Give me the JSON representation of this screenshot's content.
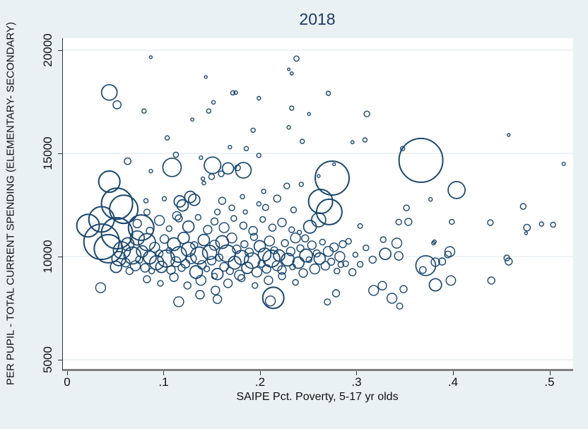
{
  "figure": {
    "background": "#eaf1f2",
    "plot_background": "#ffffff"
  },
  "colors": {
    "marker": "#1a476f",
    "title": "#1f3864",
    "gridline": "#dde7ec",
    "axis_line": "#303030",
    "bottom_axis_line": "#7f7f7f",
    "tick_text": "#111111"
  },
  "chart_data": {
    "type": "scatter",
    "subtype": "bubble-hollow",
    "title": "2018",
    "xlabel": "SAIPE Pct. Poverty, 5-17 yr olds",
    "ylabel": "PER PUPIL - TOTAL CURRENT SPENDING (ELEMENTARY- SECONDARY)",
    "xlim": [
      -0.0051,
      0.5238
    ],
    "ylim": [
      4555,
      20580
    ],
    "xtick_values": [
      0,
      0.1,
      0.2,
      0.3,
      0.4,
      0.5
    ],
    "xtick_labels": [
      "0",
      ".1",
      ".2",
      ".3",
      ".4",
      ".5"
    ],
    "ytick_values": [
      5000,
      10000,
      15000,
      20000
    ],
    "ytick_labels": [
      "5000",
      "10000",
      "15000",
      "20000"
    ],
    "grid": true,
    "legend": "none",
    "marker": "hollow-circle",
    "marker_color": "#1a476f",
    "point_format": "[poverty_rate, dollars_per_pupil, marker_radius_px]",
    "points": [
      [
        0.086,
        19660,
        2
      ],
      [
        0.237,
        19590,
        3.7
      ],
      [
        0.229,
        19070,
        1.8
      ],
      [
        0.232,
        18870,
        2.2
      ],
      [
        0.143,
        18700,
        2
      ],
      [
        0.043,
        17950,
        11
      ],
      [
        0.051,
        17350,
        5.7
      ],
      [
        0.079,
        17050,
        3
      ],
      [
        0.151,
        17470,
        2.5
      ],
      [
        0.146,
        17050,
        3
      ],
      [
        0.129,
        16640,
        2.2
      ],
      [
        0.174,
        17940,
        2.5
      ],
      [
        0.171,
        17930,
        3
      ],
      [
        0.198,
        17670,
        2.5
      ],
      [
        0.27,
        17910,
        3
      ],
      [
        0.232,
        17190,
        3
      ],
      [
        0.25,
        16910,
        2
      ],
      [
        0.31,
        16910,
        4
      ],
      [
        0.192,
        16120,
        3
      ],
      [
        0.229,
        16260,
        2.5
      ],
      [
        0.103,
        15750,
        3
      ],
      [
        0.168,
        15300,
        2.5
      ],
      [
        0.243,
        15580,
        3
      ],
      [
        0.295,
        15540,
        2.2
      ],
      [
        0.308,
        15650,
        3
      ],
      [
        0.185,
        15230,
        3
      ],
      [
        0.347,
        15230,
        3
      ],
      [
        0.457,
        15890,
        2
      ],
      [
        0.514,
        14490,
        2.3
      ],
      [
        0.366,
        14660,
        31
      ],
      [
        0.274,
        13800,
        24
      ],
      [
        0.276,
        14470,
        2
      ],
      [
        0.26,
        13900,
        2
      ],
      [
        0.108,
        14320,
        13
      ],
      [
        0.112,
        14930,
        3.7
      ],
      [
        0.138,
        14790,
        2.5
      ],
      [
        0.15,
        14420,
        11.7
      ],
      [
        0.062,
        14620,
        4.7
      ],
      [
        0.086,
        14140,
        2.5
      ],
      [
        0.043,
        13630,
        15
      ],
      [
        0.14,
        13770,
        2.5
      ],
      [
        0.141,
        13560,
        2.5
      ],
      [
        0.149,
        13870,
        4
      ],
      [
        0.159,
        14010,
        4
      ],
      [
        0.166,
        14270,
        8
      ],
      [
        0.182,
        14180,
        11
      ],
      [
        0.176,
        14300,
        4
      ],
      [
        0.198,
        14900,
        3
      ],
      [
        0.403,
        13220,
        12
      ],
      [
        0.242,
        13500,
        3
      ],
      [
        0.227,
        13420,
        4
      ],
      [
        0.051,
        12560,
        22
      ],
      [
        0.058,
        12290,
        20
      ],
      [
        0.035,
        11800,
        18
      ],
      [
        0.1,
        12800,
        3
      ],
      [
        0.116,
        12670,
        8
      ],
      [
        0.119,
        12480,
        8
      ],
      [
        0.127,
        12890,
        8
      ],
      [
        0.131,
        12750,
        8
      ],
      [
        0.113,
        11970,
        6
      ],
      [
        0.081,
        12700,
        3
      ],
      [
        0.082,
        12150,
        4.3
      ],
      [
        0.262,
        12670,
        17
      ],
      [
        0.271,
        12160,
        18
      ],
      [
        0.217,
        12810,
        5
      ],
      [
        0.234,
        12260,
        4
      ],
      [
        0.205,
        12380,
        4.3
      ],
      [
        0.203,
        13160,
        3
      ],
      [
        0.198,
        12550,
        3
      ],
      [
        0.181,
        12900,
        3
      ],
      [
        0.184,
        12160,
        3
      ],
      [
        0.16,
        12700,
        5
      ],
      [
        0.155,
        12160,
        4
      ],
      [
        0.17,
        12360,
        4
      ],
      [
        0.351,
        12360,
        4
      ],
      [
        0.376,
        12770,
        2.5
      ],
      [
        0.472,
        12430,
        4
      ],
      [
        0.021,
        11500,
        16
      ],
      [
        0.051,
        11130,
        22
      ],
      [
        0.076,
        11400,
        18
      ],
      [
        0.343,
        11670,
        4
      ],
      [
        0.353,
        11680,
        5
      ],
      [
        0.398,
        11680,
        3.5
      ],
      [
        0.438,
        11645,
        4
      ],
      [
        0.491,
        11575,
        3
      ],
      [
        0.503,
        11540,
        3.5
      ],
      [
        0.476,
        11400,
        4.7
      ],
      [
        0.475,
        11130,
        2
      ],
      [
        0.303,
        11480,
        3.3
      ],
      [
        0.26,
        11780,
        10
      ],
      [
        0.251,
        11440,
        9
      ],
      [
        0.035,
        10720,
        25
      ],
      [
        0.042,
        10380,
        20
      ],
      [
        0.327,
        10820,
        4
      ],
      [
        0.341,
        10650,
        7
      ],
      [
        0.329,
        10130,
        8
      ],
      [
        0.343,
        10030,
        6
      ],
      [
        0.316,
        9850,
        5
      ],
      [
        0.309,
        10420,
        4
      ],
      [
        0.298,
        10090,
        3.5
      ],
      [
        0.379,
        10650,
        2.5
      ],
      [
        0.396,
        10240,
        7
      ],
      [
        0.38,
        10720,
        2.5
      ],
      [
        0.246,
        10880,
        5
      ],
      [
        0.24,
        11170,
        3
      ],
      [
        0.371,
        9560,
        14
      ],
      [
        0.368,
        9350,
        4.7
      ],
      [
        0.381,
        9730,
        6
      ],
      [
        0.388,
        9760,
        5
      ],
      [
        0.394,
        10100,
        4.7
      ],
      [
        0.457,
        9760,
        5
      ],
      [
        0.455,
        9930,
        4
      ],
      [
        0.303,
        9620,
        4
      ],
      [
        0.295,
        9240,
        5
      ],
      [
        0.283,
        9610,
        4
      ],
      [
        0.291,
        10740,
        4
      ],
      [
        0.381,
        8630,
        8.7
      ],
      [
        0.397,
        8840,
        6.7
      ],
      [
        0.439,
        8840,
        5
      ],
      [
        0.034,
        8490,
        7
      ],
      [
        0.115,
        7810,
        7
      ],
      [
        0.137,
        8150,
        6
      ],
      [
        0.153,
        8360,
        6
      ],
      [
        0.155,
        7930,
        6
      ],
      [
        0.213,
        8000,
        15
      ],
      [
        0.21,
        7850,
        7
      ],
      [
        0.269,
        7800,
        4.3
      ],
      [
        0.278,
        8220,
        5
      ],
      [
        0.317,
        8360,
        7
      ],
      [
        0.326,
        8590,
        6
      ],
      [
        0.336,
        7980,
        7
      ],
      [
        0.344,
        7600,
        4.3
      ],
      [
        0.348,
        8420,
        5
      ],
      [
        0.05,
        9500,
        8
      ],
      [
        0.053,
        9900,
        10
      ],
      [
        0.056,
        10300,
        12
      ],
      [
        0.06,
        9700,
        6
      ],
      [
        0.062,
        10600,
        9
      ],
      [
        0.064,
        9300,
        5
      ],
      [
        0.067,
        10050,
        12
      ],
      [
        0.07,
        9550,
        7
      ],
      [
        0.072,
        10900,
        10
      ],
      [
        0.074,
        9850,
        5
      ],
      [
        0.077,
        10250,
        8
      ],
      [
        0.08,
        9450,
        6
      ],
      [
        0.082,
        10700,
        12
      ],
      [
        0.085,
        9950,
        9
      ],
      [
        0.087,
        9300,
        4
      ],
      [
        0.09,
        10450,
        7
      ],
      [
        0.092,
        9700,
        10
      ],
      [
        0.095,
        10150,
        5
      ],
      [
        0.097,
        9500,
        8
      ],
      [
        0.1,
        10850,
        6
      ],
      [
        0.102,
        9900,
        12
      ],
      [
        0.105,
        10300,
        4
      ],
      [
        0.107,
        9350,
        6
      ],
      [
        0.11,
        10600,
        9
      ],
      [
        0.112,
        9750,
        7
      ],
      [
        0.115,
        10100,
        11
      ],
      [
        0.118,
        9450,
        5
      ],
      [
        0.12,
        10900,
        8
      ],
      [
        0.122,
        9650,
        6
      ],
      [
        0.125,
        10350,
        10
      ],
      [
        0.128,
        9900,
        7
      ],
      [
        0.131,
        10550,
        5
      ],
      [
        0.133,
        9250,
        9
      ],
      [
        0.136,
        10050,
        12
      ],
      [
        0.139,
        9600,
        6
      ],
      [
        0.141,
        10800,
        8
      ],
      [
        0.144,
        9400,
        4
      ],
      [
        0.147,
        10200,
        10
      ],
      [
        0.149,
        9800,
        6
      ],
      [
        0.152,
        10550,
        7
      ],
      [
        0.155,
        9150,
        8
      ],
      [
        0.157,
        9950,
        5
      ],
      [
        0.16,
        10700,
        9
      ],
      [
        0.162,
        9500,
        6
      ],
      [
        0.165,
        10150,
        12
      ],
      [
        0.168,
        9300,
        5
      ],
      [
        0.17,
        10900,
        7
      ],
      [
        0.173,
        9700,
        9
      ],
      [
        0.175,
        10350,
        6
      ],
      [
        0.178,
        9100,
        7
      ],
      [
        0.18,
        9950,
        10
      ],
      [
        0.183,
        10600,
        5
      ],
      [
        0.186,
        9450,
        8
      ],
      [
        0.188,
        10200,
        6
      ],
      [
        0.191,
        9800,
        11
      ],
      [
        0.193,
        10950,
        5
      ],
      [
        0.196,
        9250,
        7
      ],
      [
        0.199,
        10500,
        8
      ],
      [
        0.201,
        9650,
        5
      ],
      [
        0.204,
        10100,
        9
      ],
      [
        0.206,
        9400,
        6
      ],
      [
        0.209,
        10750,
        7
      ],
      [
        0.211,
        9900,
        12
      ],
      [
        0.214,
        10300,
        5
      ],
      [
        0.217,
        9550,
        7
      ],
      [
        0.219,
        10050,
        8
      ],
      [
        0.222,
        9350,
        6
      ],
      [
        0.225,
        10650,
        5
      ],
      [
        0.228,
        9850,
        9
      ],
      [
        0.231,
        10250,
        6
      ],
      [
        0.233,
        9500,
        4
      ],
      [
        0.236,
        10900,
        7
      ],
      [
        0.239,
        9700,
        8
      ],
      [
        0.241,
        10400,
        5
      ],
      [
        0.244,
        9200,
        6
      ],
      [
        0.247,
        10050,
        9
      ],
      [
        0.25,
        9850,
        4
      ],
      [
        0.253,
        10550,
        6
      ],
      [
        0.256,
        9400,
        7
      ],
      [
        0.258,
        10150,
        5
      ],
      [
        0.261,
        9900,
        8
      ],
      [
        0.264,
        10700,
        4
      ],
      [
        0.267,
        9550,
        6
      ],
      [
        0.27,
        10250,
        7
      ],
      [
        0.273,
        9750,
        5
      ],
      [
        0.276,
        10450,
        6
      ],
      [
        0.279,
        9300,
        4
      ],
      [
        0.282,
        10000,
        7
      ],
      [
        0.285,
        10600,
        5
      ],
      [
        0.288,
        9650,
        4
      ],
      [
        0.072,
        11600,
        6
      ],
      [
        0.085,
        11250,
        5
      ],
      [
        0.095,
        11750,
        7
      ],
      [
        0.105,
        11350,
        4
      ],
      [
        0.115,
        11850,
        5
      ],
      [
        0.125,
        11450,
        8
      ],
      [
        0.135,
        11900,
        4
      ],
      [
        0.145,
        11300,
        6
      ],
      [
        0.152,
        11700,
        5
      ],
      [
        0.162,
        11400,
        7
      ],
      [
        0.172,
        11850,
        4
      ],
      [
        0.182,
        11500,
        5
      ],
      [
        0.192,
        11250,
        6
      ],
      [
        0.202,
        11800,
        4
      ],
      [
        0.212,
        11400,
        5
      ],
      [
        0.222,
        11650,
        6
      ],
      [
        0.232,
        11300,
        4
      ],
      [
        0.082,
        8900,
        5
      ],
      [
        0.096,
        8700,
        4
      ],
      [
        0.11,
        9000,
        6
      ],
      [
        0.124,
        8600,
        5
      ],
      [
        0.138,
        8850,
        7
      ],
      [
        0.152,
        9050,
        4
      ],
      [
        0.166,
        8700,
        6
      ],
      [
        0.18,
        8950,
        5
      ],
      [
        0.194,
        8600,
        4
      ],
      [
        0.208,
        8850,
        6
      ],
      [
        0.222,
        9050,
        5
      ],
      [
        0.236,
        8750,
        4
      ]
    ]
  }
}
